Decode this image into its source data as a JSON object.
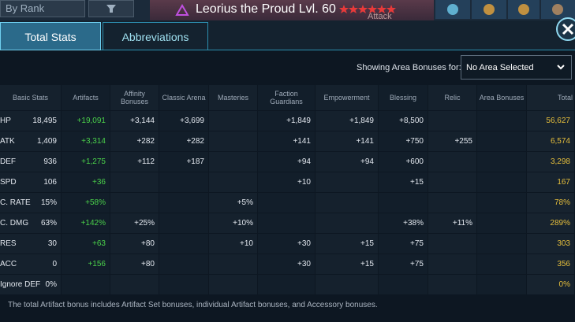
{
  "top_bar": {
    "sort_dropdown": "By Rank",
    "title": "Leorius the Proud Lvl. 60",
    "subtitle": "Attack"
  },
  "tabs": [
    "Total Stats",
    "Abbreviations"
  ],
  "area_filter": {
    "label": "Showing Area Bonuses for:",
    "selected": "No Area Selected"
  },
  "table": {
    "columns": [
      "Basic Stats",
      "Artifacts",
      "Affinity Bonuses",
      "Classic Arena",
      "Masteries",
      "Faction Guardians",
      "Empowerment",
      "Blessing",
      "Relic",
      "Area Bonuses",
      "Total"
    ],
    "rows": [
      {
        "label": "HP",
        "cells": [
          "18,495",
          "+19,091",
          "+3,144",
          "+3,699",
          null,
          "+1,849",
          "+1,849",
          "+8,500",
          null,
          null,
          "56,627"
        ]
      },
      {
        "label": "ATK",
        "cells": [
          "1,409",
          "+3,314",
          "+282",
          "+282",
          null,
          "+141",
          "+141",
          "+750",
          "+255",
          null,
          "6,574"
        ]
      },
      {
        "label": "DEF",
        "cells": [
          "936",
          "+1,275",
          "+112",
          "+187",
          null,
          "+94",
          "+94",
          "+600",
          null,
          null,
          "3,298"
        ]
      },
      {
        "label": "SPD",
        "cells": [
          "106",
          "+36",
          null,
          null,
          null,
          "+10",
          null,
          "+15",
          null,
          null,
          "167"
        ]
      },
      {
        "label": "C. RATE",
        "cells": [
          "15%",
          "+58%",
          null,
          null,
          "+5%",
          null,
          null,
          null,
          null,
          null,
          "78%"
        ]
      },
      {
        "label": "C. DMG",
        "cells": [
          "63%",
          "+142%",
          "+25%",
          null,
          "+10%",
          null,
          null,
          "+38%",
          "+11%",
          null,
          "289%"
        ]
      },
      {
        "label": "RES",
        "cells": [
          "30",
          "+63",
          "+80",
          null,
          "+10",
          "+30",
          "+15",
          "+75",
          null,
          null,
          "303"
        ]
      },
      {
        "label": "ACC",
        "cells": [
          "0",
          "+156",
          "+80",
          null,
          null,
          "+30",
          "+15",
          "+75",
          null,
          null,
          "356"
        ]
      },
      {
        "label": "Ignore DEF",
        "cells": [
          "0%",
          null,
          null,
          null,
          null,
          null,
          null,
          null,
          null,
          null,
          "0%"
        ]
      }
    ]
  },
  "footer_note": "The total Artifact bonus includes Artifact Set bonuses, individual Artifact bonuses, and Accessory bonuses."
}
